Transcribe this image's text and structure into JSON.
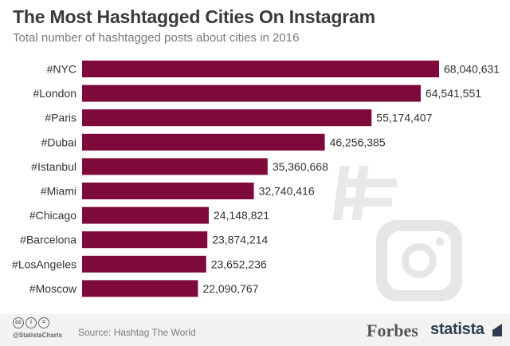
{
  "header": {
    "title": "The Most Hashtagged Cities On Instagram",
    "subtitle": "Total number of hashtagged posts about cities in 2016"
  },
  "chart_data": {
    "type": "bar",
    "orientation": "horizontal",
    "categories": [
      "#NYC",
      "#London",
      "#Paris",
      "#Dubai",
      "#Istanbul",
      "#Miami",
      "#Chicago",
      "#Barcelona",
      "#LosAngeles",
      "#Moscow"
    ],
    "values": [
      68040631,
      64541551,
      55174407,
      46256385,
      35360668,
      32740416,
      24148821,
      23874214,
      23652236,
      22090767
    ],
    "value_labels": [
      "68,040,631",
      "64,541,551",
      "55,174,407",
      "46,256,385",
      "35,360,668",
      "32,740,416",
      "24,148,821",
      "23,874,214",
      "23,652,236",
      "22,090,767"
    ],
    "title": "The Most Hashtagged Cities On Instagram",
    "xlabel": "",
    "ylabel": "",
    "xlim": [
      0,
      68040631
    ],
    "bar_color": "#7d0a3a"
  },
  "footer": {
    "cc_icons": [
      "cc",
      "i",
      "="
    ],
    "handle": "@StatistaCharts",
    "source": "Source: Hashtag The World",
    "forbes": "Forbes",
    "statista": "statista"
  },
  "colors": {
    "bar": "#7d0a3a",
    "watermark": "#e6e6e6"
  }
}
